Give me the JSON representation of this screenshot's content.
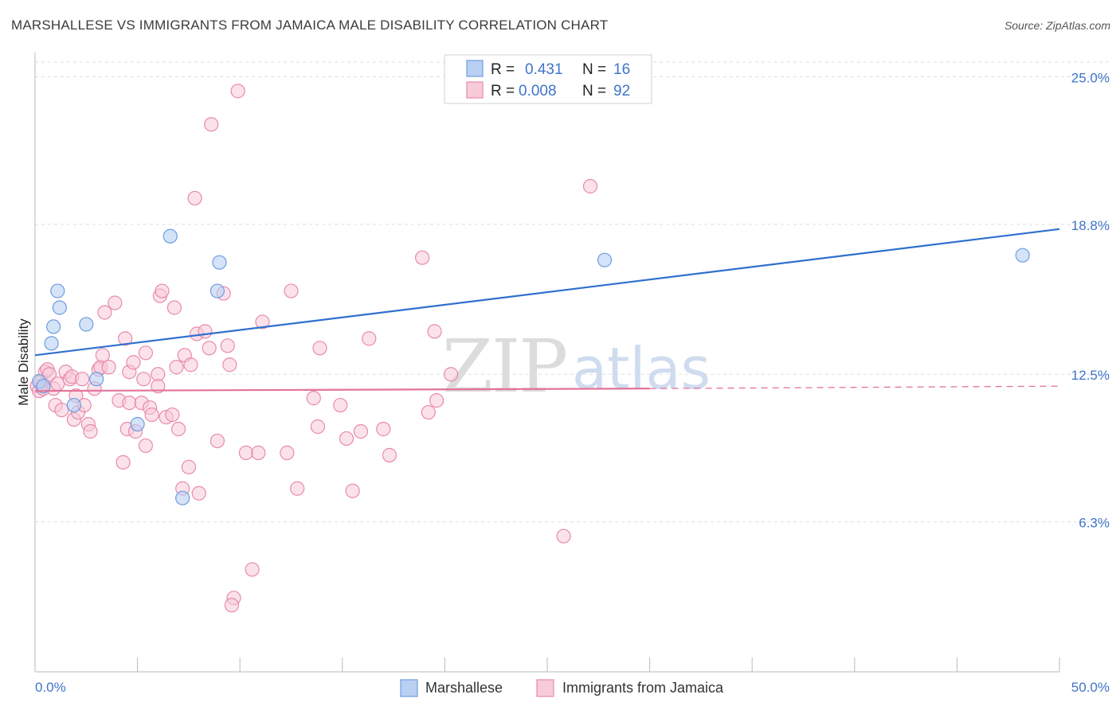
{
  "title": "MARSHALLESE VS IMMIGRANTS FROM JAMAICA MALE DISABILITY CORRELATION CHART",
  "source": "Source: ZipAtlas.com",
  "watermark": {
    "zip": "ZIP",
    "atlas": "atlas"
  },
  "colors": {
    "blue": "#6d9de0",
    "blue_fill": "#b9d0f3",
    "blue_line": "#2f6fcf",
    "pink": "#e98aaa",
    "pink_fill": "#f8cbd9",
    "pink_line": "#e2739b",
    "axis_text": "#3f74c9",
    "grid": "#dddddd"
  },
  "legend": {
    "rows": [
      {
        "r_label": "R =",
        "r_value": "0.431",
        "n_label": "N =",
        "n_value": "16"
      },
      {
        "r_label": "R =",
        "r_value": "0.008",
        "n_label": "N =",
        "n_value": "92"
      }
    ]
  },
  "bottom_legend": {
    "series1": "Marshallese",
    "series2": "Immigrants from Jamaica"
  },
  "chart_data": {
    "type": "scatter",
    "title": "MARSHALLESE VS IMMIGRANTS FROM JAMAICA MALE DISABILITY CORRELATION CHART",
    "xlabel": "",
    "ylabel": "Male Disability",
    "xlim": [
      0,
      50
    ],
    "ylim": [
      0,
      25.75
    ],
    "x_tick_labels": [
      "0.0%",
      "50.0%"
    ],
    "y_ticks": [
      6.3,
      12.5,
      18.8,
      25.0
    ],
    "y_tick_labels": [
      "6.3%",
      "12.5%",
      "18.8%",
      "25.0%"
    ],
    "grid": true,
    "series": [
      {
        "name": "Marshallese",
        "points": [
          [
            0.2,
            12.2
          ],
          [
            0.4,
            12.0
          ],
          [
            0.8,
            13.8
          ],
          [
            0.9,
            14.5
          ],
          [
            1.1,
            16.0
          ],
          [
            1.2,
            15.3
          ],
          [
            1.9,
            11.2
          ],
          [
            2.5,
            14.6
          ],
          [
            3.0,
            12.3
          ],
          [
            5.0,
            10.4
          ],
          [
            6.6,
            18.3
          ],
          [
            7.2,
            7.3
          ],
          [
            9.0,
            17.2
          ],
          [
            8.9,
            16.0
          ],
          [
            27.8,
            17.3
          ],
          [
            48.2,
            17.5
          ]
        ],
        "trend": {
          "x0": 0,
          "y0": 13.3,
          "x1": 50,
          "y1": 18.6
        }
      },
      {
        "name": "Immigrants from Jamaica",
        "points": [
          [
            0.1,
            12.0
          ],
          [
            0.2,
            11.8
          ],
          [
            0.3,
            12.2
          ],
          [
            0.4,
            11.9
          ],
          [
            0.5,
            12.6
          ],
          [
            0.6,
            12.7
          ],
          [
            0.7,
            12.5
          ],
          [
            0.9,
            11.9
          ],
          [
            1.0,
            11.2
          ],
          [
            1.1,
            12.1
          ],
          [
            1.3,
            11.0
          ],
          [
            1.5,
            12.6
          ],
          [
            1.7,
            12.3
          ],
          [
            1.8,
            12.4
          ],
          [
            1.9,
            10.6
          ],
          [
            2.0,
            11.6
          ],
          [
            2.1,
            10.9
          ],
          [
            2.3,
            12.3
          ],
          [
            2.4,
            11.2
          ],
          [
            2.6,
            10.4
          ],
          [
            2.7,
            10.1
          ],
          [
            2.9,
            11.9
          ],
          [
            3.1,
            12.7
          ],
          [
            3.2,
            12.8
          ],
          [
            3.3,
            13.3
          ],
          [
            3.4,
            15.1
          ],
          [
            3.6,
            12.8
          ],
          [
            3.9,
            15.5
          ],
          [
            4.1,
            11.4
          ],
          [
            4.3,
            8.8
          ],
          [
            4.4,
            14.0
          ],
          [
            4.5,
            10.2
          ],
          [
            4.6,
            11.3
          ],
          [
            4.6,
            12.6
          ],
          [
            4.8,
            13.0
          ],
          [
            4.9,
            10.1
          ],
          [
            5.2,
            11.3
          ],
          [
            5.3,
            12.3
          ],
          [
            5.4,
            9.5
          ],
          [
            5.4,
            13.4
          ],
          [
            5.6,
            11.1
          ],
          [
            5.7,
            10.8
          ],
          [
            6.0,
            12.5
          ],
          [
            6.0,
            12.0
          ],
          [
            6.1,
            15.8
          ],
          [
            6.2,
            16.0
          ],
          [
            6.4,
            10.7
          ],
          [
            6.7,
            10.8
          ],
          [
            6.8,
            15.3
          ],
          [
            6.9,
            12.8
          ],
          [
            7.0,
            10.2
          ],
          [
            7.2,
            7.7
          ],
          [
            7.3,
            13.3
          ],
          [
            7.5,
            8.6
          ],
          [
            7.6,
            12.9
          ],
          [
            7.8,
            19.9
          ],
          [
            7.9,
            14.2
          ],
          [
            8.0,
            7.5
          ],
          [
            8.3,
            14.3
          ],
          [
            8.5,
            13.6
          ],
          [
            8.6,
            23.0
          ],
          [
            8.9,
            9.7
          ],
          [
            9.2,
            15.9
          ],
          [
            9.4,
            13.7
          ],
          [
            9.5,
            12.9
          ],
          [
            9.7,
            3.1
          ],
          [
            9.9,
            24.4
          ],
          [
            10.3,
            9.2
          ],
          [
            10.6,
            4.3
          ],
          [
            10.9,
            9.2
          ],
          [
            11.1,
            14.7
          ],
          [
            12.3,
            9.2
          ],
          [
            12.5,
            16.0
          ],
          [
            12.8,
            7.7
          ],
          [
            13.6,
            11.5
          ],
          [
            13.8,
            10.3
          ],
          [
            13.9,
            13.6
          ],
          [
            14.9,
            11.2
          ],
          [
            15.2,
            9.8
          ],
          [
            15.5,
            7.6
          ],
          [
            15.9,
            10.1
          ],
          [
            16.3,
            14.0
          ],
          [
            17.0,
            10.2
          ],
          [
            17.3,
            9.1
          ],
          [
            18.9,
            17.4
          ],
          [
            19.2,
            10.9
          ],
          [
            19.5,
            14.3
          ],
          [
            19.6,
            11.4
          ],
          [
            20.3,
            12.5
          ],
          [
            25.8,
            5.7
          ],
          [
            27.1,
            20.4
          ],
          [
            9.6,
            2.8
          ]
        ],
        "trend": {
          "x0": 0,
          "y0": 11.8,
          "x1": 30,
          "y1": 11.9,
          "dashed_x1": 50,
          "dashed_y1": 12.0
        }
      }
    ]
  }
}
